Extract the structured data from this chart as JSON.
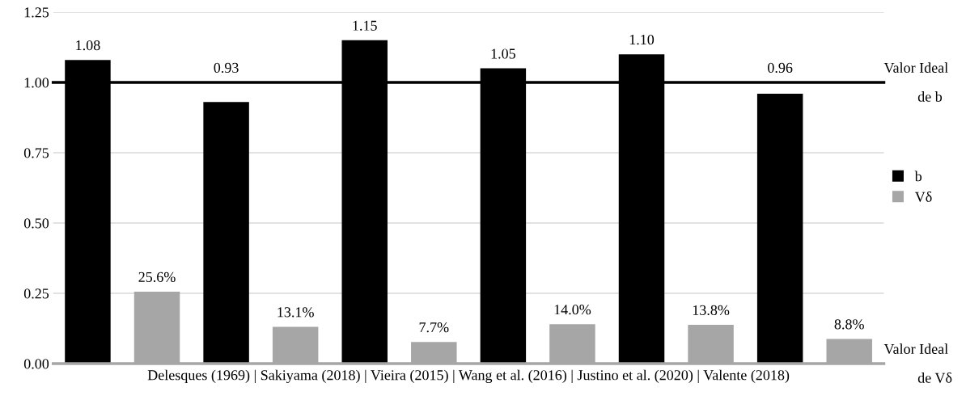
{
  "chart_data": {
    "type": "bar",
    "categories": [
      null,
      null,
      null,
      null,
      null,
      null
    ],
    "xlabel": "Delesques (1969) | Sakiyama (2018) | Vieira (2015) | Wang et al. (2016) | Justino et al. (2020) | Valente (2018)",
    "series": [
      {
        "name": "b",
        "color": "#000000",
        "values": [
          1.08,
          0.93,
          1.15,
          1.05,
          1.1,
          0.96
        ],
        "value_labels": [
          "1.08",
          "0.93",
          "1.15",
          "1.05",
          "1.10",
          "0.96"
        ]
      },
      {
        "name": "Vδ",
        "color": "#a6a6a6",
        "values": [
          0.256,
          0.131,
          0.077,
          0.14,
          0.138,
          0.088
        ],
        "value_labels": [
          "25.6%",
          "13.1%",
          "7.7%",
          "14.0%",
          "13.8%",
          "8.8%"
        ]
      }
    ],
    "ylim": [
      0,
      1.25
    ],
    "yticks": [
      {
        "value": 0,
        "label": "0.00"
      },
      {
        "value": 0.25,
        "label": "0.25"
      },
      {
        "value": 0.5,
        "label": "0.50"
      },
      {
        "value": 0.75,
        "label": "0.75"
      },
      {
        "value": 1.0,
        "label": "1.00"
      },
      {
        "value": 1.25,
        "label": "1.25"
      }
    ],
    "ref_lines": [
      {
        "axis": "y",
        "value": 1.0,
        "label": "Valor Ideal de b",
        "color": "#000000"
      },
      {
        "axis": "y",
        "value": 0,
        "label": "Valor Ideal de Vδ",
        "color": "#a6a6a6"
      }
    ],
    "grid": "y",
    "legend": "right"
  }
}
